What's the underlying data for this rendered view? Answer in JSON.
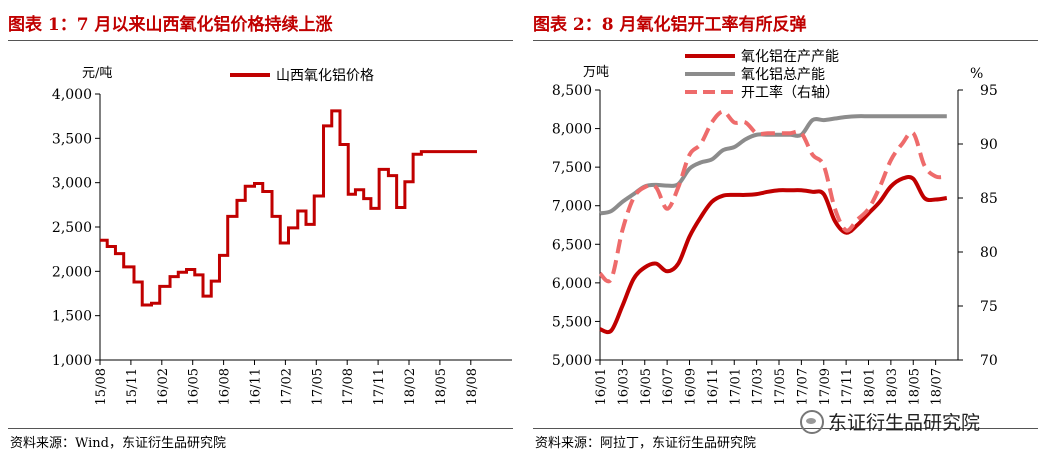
{
  "left": {
    "title": "图表 1：7 月以来山西氧化铝价格持续上涨",
    "source": "资料来源：Wind，东证衍生品研究院"
  },
  "right": {
    "title": "图表 2：8 月氧化铝开工率有所反弹",
    "source": "资料来源：阿拉丁，东证衍生品研究院"
  },
  "watermark": "东证衍生品研究院",
  "colors": {
    "title": "#c00000",
    "red": "#c00000",
    "gray": "#8c8c8c",
    "salmon": "#ee6b6b"
  },
  "chart_data": [
    {
      "type": "line",
      "step": true,
      "ylabel": "元/吨",
      "ylim": [
        1000,
        4000
      ],
      "yticks": [
        "1,000",
        "1,500",
        "2,000",
        "2,500",
        "3,000",
        "3,500",
        "4,000"
      ],
      "yticks_values": [
        1000,
        1500,
        2000,
        2500,
        3000,
        3500,
        4000
      ],
      "xlim": [
        0,
        40
      ],
      "xticks": [
        "15/08",
        "15/11",
        "16/02",
        "16/05",
        "16/08",
        "16/11",
        "17/02",
        "17/05",
        "17/08",
        "17/11",
        "18/02",
        "18/05",
        "18/08"
      ],
      "xticks_pos": [
        0,
        3,
        6,
        9,
        12,
        15,
        18,
        21,
        24,
        27,
        30,
        33,
        36
      ],
      "legend_position": "top",
      "series": [
        {
          "name": "山西氧化铝价格",
          "color": "#c00000",
          "x": [
            0,
            0.7,
            1.5,
            2.3,
            3.3,
            4.1,
            5,
            5.8,
            6.8,
            7.6,
            8.4,
            9.2,
            10,
            10.8,
            11.6,
            12.4,
            13.3,
            14.1,
            15,
            15.8,
            16.7,
            17.5,
            18.3,
            19.2,
            20,
            20.8,
            21.7,
            22.5,
            23.3,
            24.1,
            24.8,
            25.6,
            26.3,
            27.1,
            28,
            28.8,
            29.6,
            30.4,
            31.2,
            32,
            32.8,
            33.6,
            34.4,
            35.2,
            36,
            36.6
          ],
          "values": [
            2350,
            2280,
            2200,
            2050,
            1880,
            1620,
            1640,
            1830,
            1940,
            1990,
            2020,
            1960,
            1720,
            1890,
            2180,
            2620,
            2800,
            2960,
            2990,
            2900,
            2620,
            2320,
            2490,
            2680,
            2530,
            2850,
            3640,
            3810,
            3430,
            2870,
            2920,
            2820,
            2710,
            3150,
            3080,
            2720,
            3010,
            3320,
            3350,
            3350,
            3350,
            3350,
            3350,
            3350,
            3350,
            3350
          ]
        }
      ]
    },
    {
      "type": "line",
      "ylabel": "万吨",
      "ylim": [
        5000,
        8500
      ],
      "yticks": [
        "5,000",
        "5,500",
        "6,000",
        "6,500",
        "7,000",
        "7,500",
        "8,000",
        "8,500"
      ],
      "yticks_values": [
        5000,
        5500,
        6000,
        6500,
        7000,
        7500,
        8000,
        8500
      ],
      "y2label": "%",
      "y2lim": [
        70,
        95
      ],
      "y2ticks": [
        "70",
        "75",
        "80",
        "85",
        "90",
        "95"
      ],
      "y2ticks_values": [
        70,
        75,
        80,
        85,
        90,
        95
      ],
      "xlim": [
        0,
        32
      ],
      "xticks": [
        "16/01",
        "16/03",
        "16/05",
        "16/07",
        "16/09",
        "16/11",
        "17/01",
        "17/03",
        "17/05",
        "17/07",
        "17/09",
        "17/11",
        "18/01",
        "18/03",
        "18/05",
        "18/07"
      ],
      "xticks_pos": [
        0,
        2,
        4,
        6,
        8,
        10,
        12,
        14,
        16,
        18,
        20,
        22,
        24,
        26,
        28,
        30
      ],
      "legend_position": "top",
      "series": [
        {
          "name": "氧化铝在产产能",
          "axis": "left",
          "color": "#c00000",
          "x": [
            0,
            1,
            2,
            3,
            4,
            5,
            6,
            7,
            8,
            9,
            10,
            11,
            12,
            13,
            14,
            15,
            16,
            17,
            18,
            19,
            20,
            21,
            22,
            23,
            24,
            25,
            26,
            27,
            28,
            29,
            30,
            31
          ],
          "values": [
            5400,
            5380,
            5700,
            6050,
            6200,
            6250,
            6150,
            6250,
            6600,
            6850,
            7050,
            7130,
            7140,
            7140,
            7150,
            7180,
            7200,
            7200,
            7200,
            7180,
            7150,
            6800,
            6650,
            6750,
            6900,
            7050,
            7250,
            7350,
            7350,
            7100,
            7080,
            7100
          ]
        },
        {
          "name": "氧化铝总产能",
          "axis": "left",
          "color": "#8c8c8c",
          "x": [
            0,
            1,
            2,
            3,
            4,
            5,
            6,
            7,
            8,
            9,
            10,
            11,
            12,
            13,
            14,
            15,
            16,
            17,
            18,
            19,
            20,
            21,
            22,
            23,
            24,
            25,
            26,
            27,
            28,
            29,
            30,
            31
          ],
          "values": [
            6900,
            6930,
            7050,
            7150,
            7250,
            7270,
            7260,
            7280,
            7480,
            7560,
            7600,
            7720,
            7760,
            7860,
            7920,
            7920,
            7920,
            7920,
            7920,
            8110,
            8110,
            8130,
            8150,
            8160,
            8160,
            8160,
            8160,
            8160,
            8160,
            8160,
            8160,
            8160
          ]
        },
        {
          "name": "开工率（右轴）",
          "axis": "right",
          "style": "dashed",
          "color": "#ee6b6b",
          "x": [
            0,
            1,
            2,
            3,
            4,
            5,
            6,
            7,
            8,
            9,
            10,
            11,
            12,
            13,
            14,
            15,
            16,
            17,
            18,
            19,
            20,
            21,
            22,
            23,
            24,
            25,
            26,
            27,
            28,
            29,
            30,
            31
          ],
          "values": [
            78,
            77.5,
            82,
            85,
            86,
            86,
            84,
            86,
            89,
            90,
            92,
            93,
            92,
            92,
            91,
            91,
            91,
            91,
            91,
            89,
            88,
            84,
            82,
            83,
            84,
            86,
            88.5,
            90,
            91,
            88,
            87,
            87
          ]
        }
      ]
    }
  ]
}
